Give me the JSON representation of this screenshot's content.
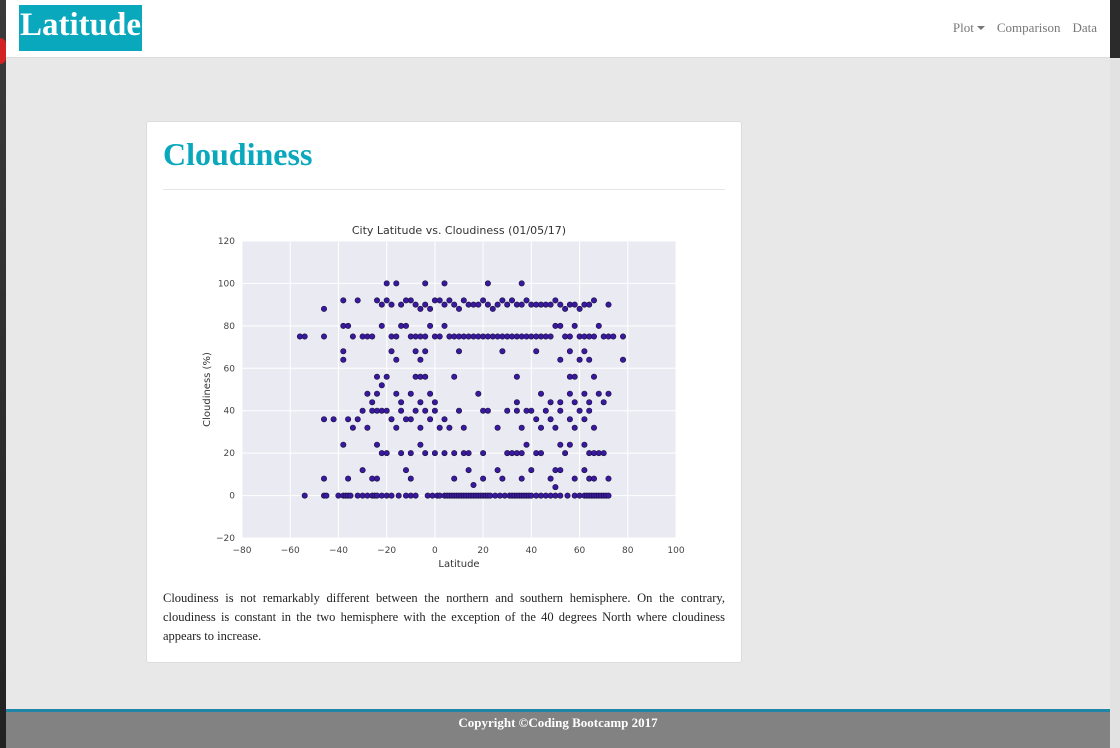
{
  "navbar": {
    "brand": "Latitude",
    "links": [
      {
        "label": "Plot",
        "dropdown": true
      },
      {
        "label": "Comparison"
      },
      {
        "label": "Data"
      }
    ]
  },
  "card": {
    "title": "Cloudiness",
    "description": "Cloudiness is not remarkably different between the northern and southern hemisphere. On the contrary, cloudiness is constant in the two hemisphere with the exception of the 40 degrees North where cloudiness appears to increase."
  },
  "footer": {
    "text": "Copyright ©Coding Bootcamp 2017"
  },
  "colors": {
    "accent": "#0aa8bd",
    "plot_bg": "#eaeaf2",
    "marker": "#3a18a0",
    "marker_edge": "#15103a",
    "footer_bg": "#828282",
    "footer_line": "#1f86a8"
  },
  "chart_data": {
    "type": "scatter",
    "title": "City Latitude vs. Cloudiness (01/05/17)",
    "xlabel": "Latitude",
    "ylabel": "Cloudiness (%)",
    "xlim": [
      -80,
      100
    ],
    "ylim": [
      -20,
      120
    ],
    "xticks": [
      -80,
      -60,
      -40,
      -20,
      0,
      20,
      40,
      60,
      80,
      100
    ],
    "yticks": [
      -20,
      0,
      20,
      40,
      60,
      80,
      100,
      120
    ],
    "grid": true,
    "points": [
      [
        -54,
        0
      ],
      [
        -46,
        0
      ],
      [
        -45,
        0
      ],
      [
        -40,
        0
      ],
      [
        -38,
        0
      ],
      [
        -37,
        0
      ],
      [
        -36,
        0
      ],
      [
        -35,
        0
      ],
      [
        -32,
        0
      ],
      [
        -30,
        0
      ],
      [
        -28,
        0
      ],
      [
        -26,
        0
      ],
      [
        -25,
        0
      ],
      [
        -24,
        0
      ],
      [
        -22,
        0
      ],
      [
        -20,
        0
      ],
      [
        -18,
        0
      ],
      [
        -15,
        0
      ],
      [
        -12,
        0
      ],
      [
        -10,
        0
      ],
      [
        -8,
        0
      ],
      [
        -3,
        0
      ],
      [
        -1,
        0
      ],
      [
        1,
        0
      ],
      [
        2,
        0
      ],
      [
        4,
        0
      ],
      [
        5,
        0
      ],
      [
        6,
        0
      ],
      [
        7,
        0
      ],
      [
        8,
        0
      ],
      [
        9,
        0
      ],
      [
        10,
        0
      ],
      [
        11,
        0
      ],
      [
        12,
        0
      ],
      [
        13,
        0
      ],
      [
        14,
        0
      ],
      [
        15,
        0
      ],
      [
        16,
        0
      ],
      [
        17,
        0
      ],
      [
        18,
        0
      ],
      [
        19,
        0
      ],
      [
        20,
        0
      ],
      [
        21,
        0
      ],
      [
        22,
        0
      ],
      [
        23,
        0
      ],
      [
        25,
        0
      ],
      [
        27,
        0
      ],
      [
        29,
        0
      ],
      [
        31,
        0
      ],
      [
        32,
        0
      ],
      [
        33,
        0
      ],
      [
        34,
        0
      ],
      [
        35,
        0
      ],
      [
        36,
        0
      ],
      [
        37,
        0
      ],
      [
        38,
        0
      ],
      [
        39,
        0
      ],
      [
        40,
        0
      ],
      [
        42,
        0
      ],
      [
        44,
        0
      ],
      [
        46,
        0
      ],
      [
        48,
        0
      ],
      [
        50,
        0
      ],
      [
        52,
        0
      ],
      [
        55,
        0
      ],
      [
        58,
        0
      ],
      [
        60,
        0
      ],
      [
        62,
        0
      ],
      [
        63,
        0
      ],
      [
        64,
        0
      ],
      [
        65,
        0
      ],
      [
        66,
        0
      ],
      [
        67,
        0
      ],
      [
        68,
        0
      ],
      [
        69,
        0
      ],
      [
        70,
        0
      ],
      [
        71,
        0
      ],
      [
        72,
        0
      ],
      [
        -46,
        8
      ],
      [
        -36,
        8
      ],
      [
        -30,
        12
      ],
      [
        -26,
        8
      ],
      [
        -24,
        8
      ],
      [
        -12,
        12
      ],
      [
        -10,
        8
      ],
      [
        8,
        8
      ],
      [
        14,
        12
      ],
      [
        16,
        5
      ],
      [
        20,
        8
      ],
      [
        26,
        12
      ],
      [
        28,
        8
      ],
      [
        36,
        8
      ],
      [
        40,
        12
      ],
      [
        48,
        8
      ],
      [
        50,
        12
      ],
      [
        52,
        12
      ],
      [
        58,
        8
      ],
      [
        62,
        12
      ],
      [
        64,
        8
      ],
      [
        66,
        8
      ],
      [
        72,
        8
      ],
      [
        50,
        4
      ],
      [
        -38,
        24
      ],
      [
        -24,
        24
      ],
      [
        -22,
        20
      ],
      [
        -20,
        20
      ],
      [
        -14,
        20
      ],
      [
        -10,
        20
      ],
      [
        -6,
        24
      ],
      [
        -4,
        20
      ],
      [
        0,
        20
      ],
      [
        4,
        20
      ],
      [
        8,
        20
      ],
      [
        12,
        20
      ],
      [
        14,
        20
      ],
      [
        20,
        20
      ],
      [
        30,
        20
      ],
      [
        32,
        20
      ],
      [
        34,
        20
      ],
      [
        36,
        20
      ],
      [
        38,
        24
      ],
      [
        42,
        20
      ],
      [
        44,
        20
      ],
      [
        52,
        24
      ],
      [
        54,
        20
      ],
      [
        56,
        24
      ],
      [
        62,
        24
      ],
      [
        64,
        20
      ],
      [
        66,
        20
      ],
      [
        68,
        20
      ],
      [
        70,
        20
      ],
      [
        -46,
        36
      ],
      [
        -42,
        36
      ],
      [
        -36,
        36
      ],
      [
        -34,
        32
      ],
      [
        -32,
        36
      ],
      [
        -30,
        40
      ],
      [
        -28,
        32
      ],
      [
        -26,
        40
      ],
      [
        -24,
        40
      ],
      [
        -22,
        40
      ],
      [
        -20,
        40
      ],
      [
        -18,
        36
      ],
      [
        -16,
        32
      ],
      [
        -14,
        40
      ],
      [
        -12,
        36
      ],
      [
        -10,
        36
      ],
      [
        -8,
        40
      ],
      [
        -6,
        32
      ],
      [
        -4,
        40
      ],
      [
        -2,
        36
      ],
      [
        0,
        40
      ],
      [
        2,
        32
      ],
      [
        4,
        36
      ],
      [
        6,
        32
      ],
      [
        10,
        40
      ],
      [
        12,
        32
      ],
      [
        20,
        40
      ],
      [
        22,
        40
      ],
      [
        26,
        32
      ],
      [
        30,
        40
      ],
      [
        34,
        40
      ],
      [
        36,
        32
      ],
      [
        38,
        40
      ],
      [
        40,
        40
      ],
      [
        42,
        36
      ],
      [
        44,
        32
      ],
      [
        46,
        40
      ],
      [
        48,
        36
      ],
      [
        50,
        32
      ],
      [
        52,
        40
      ],
      [
        56,
        36
      ],
      [
        58,
        32
      ],
      [
        60,
        40
      ],
      [
        62,
        36
      ],
      [
        64,
        40
      ],
      [
        66,
        32
      ],
      [
        -28,
        48
      ],
      [
        -26,
        44
      ],
      [
        -24,
        48
      ],
      [
        -16,
        48
      ],
      [
        -14,
        44
      ],
      [
        -10,
        48
      ],
      [
        -6,
        44
      ],
      [
        -2,
        48
      ],
      [
        0,
        44
      ],
      [
        18,
        48
      ],
      [
        34,
        44
      ],
      [
        44,
        48
      ],
      [
        48,
        44
      ],
      [
        52,
        44
      ],
      [
        56,
        48
      ],
      [
        58,
        44
      ],
      [
        62,
        48
      ],
      [
        64,
        44
      ],
      [
        68,
        48
      ],
      [
        70,
        44
      ],
      [
        72,
        48
      ],
      [
        -24,
        56
      ],
      [
        -22,
        52
      ],
      [
        -20,
        56
      ],
      [
        -8,
        56
      ],
      [
        -6,
        56
      ],
      [
        -4,
        56
      ],
      [
        8,
        56
      ],
      [
        34,
        56
      ],
      [
        56,
        56
      ],
      [
        58,
        56
      ],
      [
        66,
        56
      ],
      [
        -38,
        64
      ],
      [
        -38,
        68
      ],
      [
        -18,
        68
      ],
      [
        -16,
        64
      ],
      [
        -8,
        68
      ],
      [
        -6,
        64
      ],
      [
        -4,
        68
      ],
      [
        10,
        68
      ],
      [
        28,
        68
      ],
      [
        42,
        68
      ],
      [
        52,
        64
      ],
      [
        56,
        68
      ],
      [
        60,
        64
      ],
      [
        62,
        68
      ],
      [
        64,
        64
      ],
      [
        78,
        64
      ],
      [
        -56,
        75
      ],
      [
        -54,
        75
      ],
      [
        -46,
        75
      ],
      [
        -38,
        80
      ],
      [
        -36,
        80
      ],
      [
        -34,
        75
      ],
      [
        -30,
        75
      ],
      [
        -28,
        75
      ],
      [
        -26,
        75
      ],
      [
        -22,
        80
      ],
      [
        -18,
        75
      ],
      [
        -16,
        75
      ],
      [
        -14,
        80
      ],
      [
        -12,
        80
      ],
      [
        -10,
        75
      ],
      [
        -8,
        75
      ],
      [
        -6,
        75
      ],
      [
        -4,
        75
      ],
      [
        -2,
        80
      ],
      [
        0,
        75
      ],
      [
        2,
        75
      ],
      [
        4,
        80
      ],
      [
        6,
        75
      ],
      [
        8,
        75
      ],
      [
        10,
        75
      ],
      [
        12,
        75
      ],
      [
        14,
        75
      ],
      [
        16,
        75
      ],
      [
        18,
        75
      ],
      [
        20,
        75
      ],
      [
        22,
        75
      ],
      [
        24,
        75
      ],
      [
        26,
        75
      ],
      [
        28,
        75
      ],
      [
        30,
        75
      ],
      [
        32,
        75
      ],
      [
        34,
        75
      ],
      [
        36,
        75
      ],
      [
        38,
        75
      ],
      [
        40,
        75
      ],
      [
        42,
        75
      ],
      [
        44,
        75
      ],
      [
        46,
        75
      ],
      [
        48,
        75
      ],
      [
        50,
        80
      ],
      [
        52,
        80
      ],
      [
        54,
        75
      ],
      [
        56,
        75
      ],
      [
        58,
        80
      ],
      [
        60,
        75
      ],
      [
        62,
        75
      ],
      [
        64,
        75
      ],
      [
        66,
        75
      ],
      [
        68,
        80
      ],
      [
        70,
        75
      ],
      [
        72,
        75
      ],
      [
        74,
        75
      ],
      [
        78,
        75
      ],
      [
        -46,
        88
      ],
      [
        -38,
        92
      ],
      [
        -32,
        92
      ],
      [
        -24,
        92
      ],
      [
        -22,
        90
      ],
      [
        -20,
        92
      ],
      [
        -18,
        90
      ],
      [
        -14,
        90
      ],
      [
        -12,
        92
      ],
      [
        -10,
        92
      ],
      [
        -8,
        90
      ],
      [
        -6,
        88
      ],
      [
        -4,
        90
      ],
      [
        -2,
        88
      ],
      [
        0,
        92
      ],
      [
        2,
        92
      ],
      [
        4,
        90
      ],
      [
        6,
        92
      ],
      [
        8,
        90
      ],
      [
        10,
        88
      ],
      [
        12,
        92
      ],
      [
        14,
        90
      ],
      [
        16,
        90
      ],
      [
        18,
        90
      ],
      [
        20,
        92
      ],
      [
        22,
        90
      ],
      [
        24,
        88
      ],
      [
        26,
        90
      ],
      [
        28,
        92
      ],
      [
        30,
        90
      ],
      [
        32,
        92
      ],
      [
        34,
        90
      ],
      [
        36,
        90
      ],
      [
        38,
        92
      ],
      [
        40,
        90
      ],
      [
        42,
        90
      ],
      [
        44,
        90
      ],
      [
        46,
        90
      ],
      [
        48,
        90
      ],
      [
        50,
        92
      ],
      [
        52,
        90
      ],
      [
        54,
        88
      ],
      [
        56,
        90
      ],
      [
        58,
        90
      ],
      [
        60,
        88
      ],
      [
        62,
        90
      ],
      [
        64,
        90
      ],
      [
        66,
        92
      ],
      [
        72,
        90
      ],
      [
        -20,
        100
      ],
      [
        -16,
        100
      ],
      [
        -4,
        100
      ],
      [
        4,
        100
      ],
      [
        22,
        100
      ],
      [
        36,
        100
      ]
    ]
  }
}
